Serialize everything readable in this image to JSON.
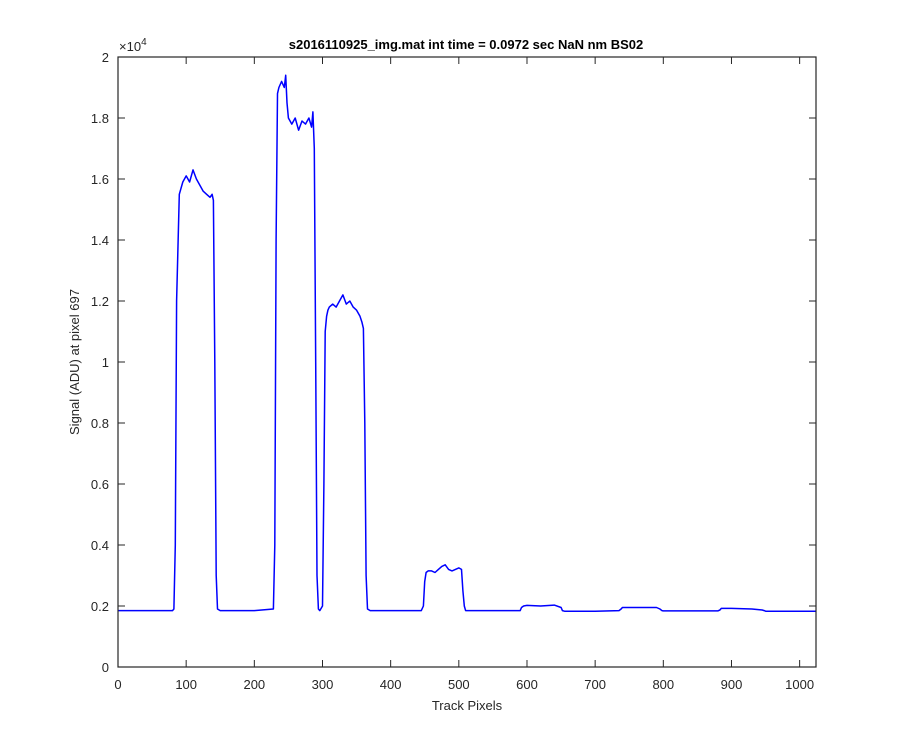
{
  "chart_data": {
    "type": "line",
    "title": "s2016110925_img.mat int time = 0.0972 sec  NaN nm BS02",
    "xlabel": "Track Pixels",
    "ylabel": "Signal (ADU) at pixel 697",
    "y_exponent_label": "×10",
    "y_exponent_power": "4",
    "xlim": [
      0,
      1024
    ],
    "ylim": [
      0,
      20000
    ],
    "x_ticks": [
      0,
      100,
      200,
      300,
      400,
      500,
      600,
      700,
      800,
      900,
      1000
    ],
    "x_tick_labels": [
      "0",
      "100",
      "200",
      "300",
      "400",
      "500",
      "600",
      "700",
      "800",
      "900",
      "1000"
    ],
    "y_ticks": [
      0,
      2000,
      4000,
      6000,
      8000,
      10000,
      12000,
      14000,
      16000,
      18000,
      20000
    ],
    "y_tick_labels": [
      "0",
      "0.2",
      "0.4",
      "0.6",
      "0.8",
      "1",
      "1.2",
      "1.4",
      "1.6",
      "1.8",
      "2"
    ],
    "grid": false,
    "color": "#0000ff",
    "series": [
      {
        "x": [
          0,
          80,
          82,
          84,
          86,
          90,
          95,
          100,
          105,
          110,
          115,
          120,
          125,
          130,
          135,
          138,
          140,
          142,
          144,
          146,
          150,
          200,
          228,
          230,
          232,
          234,
          236,
          240,
          244,
          246,
          248,
          250,
          255,
          260,
          265,
          270,
          275,
          280,
          284,
          286,
          288,
          290,
          292,
          294,
          296,
          300,
          302,
          304,
          306,
          308,
          310,
          315,
          320,
          325,
          330,
          335,
          340,
          345,
          350,
          355,
          358,
          360,
          362,
          364,
          366,
          370,
          445,
          448,
          450,
          452,
          455,
          460,
          465,
          470,
          475,
          480,
          485,
          490,
          495,
          500,
          504,
          506,
          508,
          510,
          590,
          592,
          595,
          600,
          620,
          640,
          650,
          652,
          655,
          700,
          735,
          738,
          740,
          760,
          790,
          795,
          798,
          800,
          850,
          880,
          883,
          885,
          900,
          930,
          945,
          948,
          950,
          1000,
          1024
        ],
        "y": [
          1850,
          1850,
          1900,
          4000,
          12000,
          15500,
          15900,
          16100,
          15900,
          16300,
          16000,
          15800,
          15600,
          15500,
          15400,
          15500,
          15300,
          10000,
          3000,
          1900,
          1850,
          1850,
          1900,
          4000,
          14000,
          18800,
          19000,
          19200,
          19000,
          19400,
          18500,
          18000,
          17800,
          18000,
          17600,
          17900,
          17800,
          18000,
          17700,
          18200,
          17000,
          10000,
          3000,
          1900,
          1850,
          2000,
          6000,
          11000,
          11500,
          11700,
          11800,
          11900,
          11800,
          12000,
          12200,
          11900,
          12000,
          11800,
          11700,
          11500,
          11300,
          11100,
          8000,
          3000,
          1900,
          1850,
          1850,
          2000,
          2800,
          3100,
          3150,
          3150,
          3100,
          3200,
          3300,
          3350,
          3200,
          3150,
          3200,
          3250,
          3200,
          2500,
          2000,
          1850,
          1850,
          1950,
          2000,
          2020,
          2000,
          2030,
          1950,
          1850,
          1830,
          1830,
          1850,
          1900,
          1950,
          1950,
          1950,
          1900,
          1850,
          1840,
          1840,
          1840,
          1870,
          1920,
          1920,
          1900,
          1870,
          1850,
          1830,
          1830,
          1830
        ]
      }
    ]
  }
}
